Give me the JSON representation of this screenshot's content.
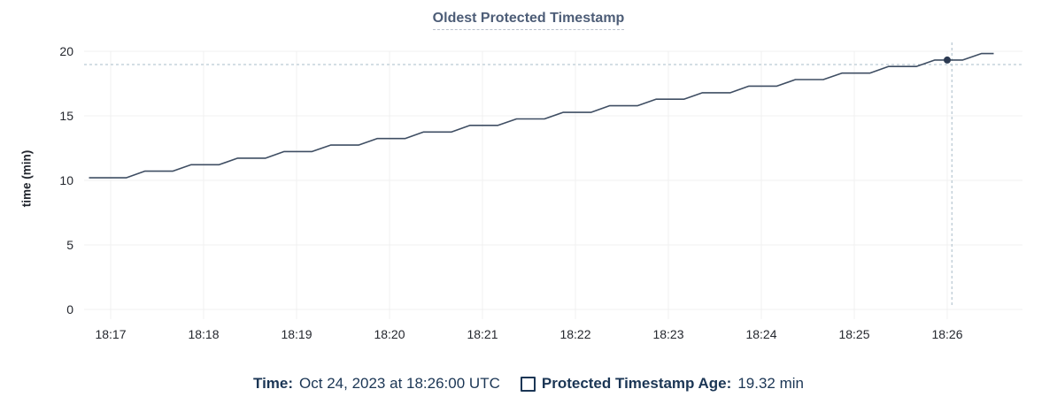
{
  "title": "Oldest Protected Timestamp",
  "colors": {
    "line": "#3f4e63",
    "dot": "#2c3a52",
    "grid": "#f0f0f0",
    "crosshair": "#a8bcc8",
    "tick_text": "#24272e",
    "axis_title_text": "#22262e",
    "title": "#4d5d77",
    "underline": "#b8c0cc",
    "legend_text": "#1b3655"
  },
  "legend": {
    "time_label": "Time:",
    "time_value": "Oct 24, 2023 at 18:26:00 UTC",
    "series_label": "Protected Timestamp Age:",
    "series_value": "19.32 min"
  },
  "chart_data": {
    "type": "line",
    "title": "Oldest Protected Timestamp",
    "xlabel": "",
    "ylabel": "time (min)",
    "ylim": [
      0,
      20
    ],
    "y_ticks": [
      0,
      5,
      10,
      15,
      20
    ],
    "x_ticks": [
      "18:17",
      "18:18",
      "18:19",
      "18:20",
      "18:21",
      "18:22",
      "18:23",
      "18:24",
      "18:25",
      "18:26"
    ],
    "x_seconds_per_tick": 60,
    "grid": true,
    "legend_position": "bottom",
    "series": [
      {
        "name": "Protected Timestamp Age",
        "unit": "min",
        "color": "#3f4e63",
        "points": [
          [
            -14,
            10.2
          ],
          [
            10,
            10.2
          ],
          [
            22,
            10.71
          ],
          [
            40,
            10.71
          ],
          [
            52,
            11.21
          ],
          [
            70,
            11.21
          ],
          [
            82,
            11.72
          ],
          [
            100,
            11.72
          ],
          [
            112,
            12.23
          ],
          [
            130,
            12.23
          ],
          [
            142,
            12.73
          ],
          [
            160,
            12.73
          ],
          [
            172,
            13.24
          ],
          [
            190,
            13.24
          ],
          [
            202,
            13.75
          ],
          [
            220,
            13.75
          ],
          [
            232,
            14.26
          ],
          [
            250,
            14.26
          ],
          [
            262,
            14.76
          ],
          [
            280,
            14.76
          ],
          [
            292,
            15.27
          ],
          [
            310,
            15.27
          ],
          [
            322,
            15.78
          ],
          [
            340,
            15.78
          ],
          [
            352,
            16.29
          ],
          [
            370,
            16.29
          ],
          [
            382,
            16.79
          ],
          [
            400,
            16.79
          ],
          [
            412,
            17.3
          ],
          [
            430,
            17.3
          ],
          [
            442,
            17.81
          ],
          [
            460,
            17.81
          ],
          [
            472,
            18.31
          ],
          [
            490,
            18.31
          ],
          [
            502,
            18.82
          ],
          [
            520,
            18.82
          ],
          [
            532,
            19.32
          ],
          [
            550,
            19.32
          ],
          [
            562,
            19.82
          ],
          [
            570,
            19.82
          ]
        ]
      }
    ],
    "hover": {
      "point": [
        540,
        19.32
      ],
      "crosshair": [
        543,
        18.97
      ],
      "time": "Oct 24, 2023 at 18:26:00 UTC",
      "value_text": "19.32 min"
    }
  }
}
